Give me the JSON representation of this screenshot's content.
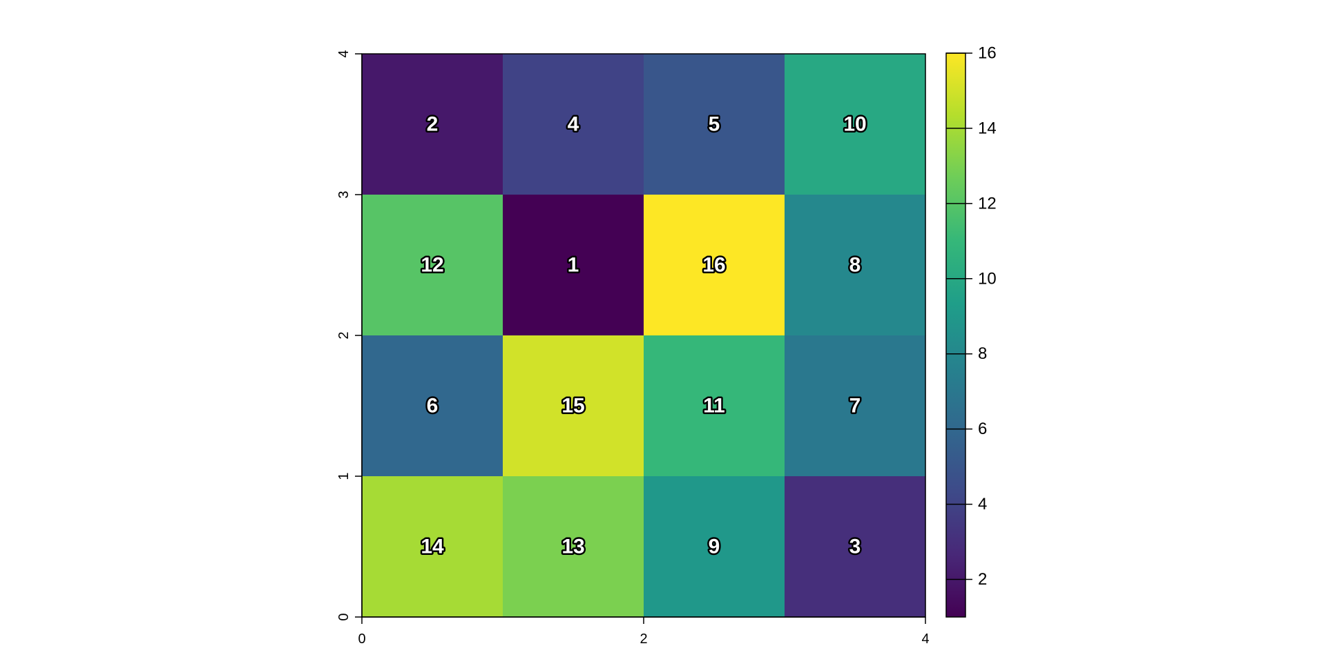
{
  "chart_data": {
    "type": "heatmap",
    "title": "",
    "xlabel": "",
    "ylabel": "",
    "xlim": [
      0,
      4
    ],
    "ylim": [
      0,
      4
    ],
    "x_ticks": [
      "0",
      "2",
      "4"
    ],
    "y_ticks": [
      "0",
      "1",
      "2",
      "3",
      "4"
    ],
    "cells": [
      {
        "col": 0,
        "row": 3,
        "value": 2
      },
      {
        "col": 1,
        "row": 3,
        "value": 4
      },
      {
        "col": 2,
        "row": 3,
        "value": 5
      },
      {
        "col": 3,
        "row": 3,
        "value": 10
      },
      {
        "col": 0,
        "row": 2,
        "value": 12
      },
      {
        "col": 1,
        "row": 2,
        "value": 1
      },
      {
        "col": 2,
        "row": 2,
        "value": 16
      },
      {
        "col": 3,
        "row": 2,
        "value": 8
      },
      {
        "col": 0,
        "row": 1,
        "value": 6
      },
      {
        "col": 1,
        "row": 1,
        "value": 15
      },
      {
        "col": 2,
        "row": 1,
        "value": 11
      },
      {
        "col": 3,
        "row": 1,
        "value": 7
      },
      {
        "col": 0,
        "row": 0,
        "value": 14
      },
      {
        "col": 1,
        "row": 0,
        "value": 13
      },
      {
        "col": 2,
        "row": 0,
        "value": 9
      },
      {
        "col": 3,
        "row": 0,
        "value": 3
      }
    ],
    "color_scale": {
      "name": "viridis",
      "min": 1,
      "max": 16,
      "ticks": [
        "2",
        "4",
        "6",
        "8",
        "10",
        "12",
        "14",
        "16"
      ],
      "colors": [
        "#440154",
        "#482878",
        "#3E4A89",
        "#31688E",
        "#26828E",
        "#1F9E89",
        "#35B779",
        "#6DCD59",
        "#B4DE2C",
        "#FDE725"
      ]
    },
    "grid": false,
    "legend_position": "right"
  }
}
